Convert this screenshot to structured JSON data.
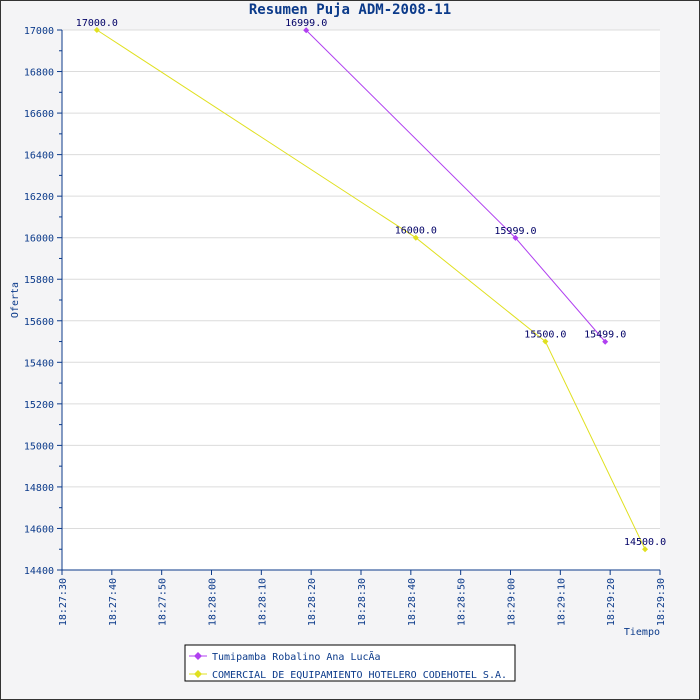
{
  "chart_data": {
    "type": "line",
    "title": "Resumen Puja ADM-2008-11",
    "xlabel": "Tiempo",
    "ylabel": "Oferta",
    "ylim": [
      14400,
      17000
    ],
    "yticks": [
      14400,
      14600,
      14800,
      15000,
      15200,
      15400,
      15600,
      15800,
      16000,
      16200,
      16400,
      16600,
      16800,
      17000
    ],
    "xlim_seconds": [
      0,
      120
    ],
    "xticks": [
      "18:27:30",
      "18:27:40",
      "18:27:50",
      "18:28:00",
      "18:28:10",
      "18:28:20",
      "18:28:30",
      "18:28:40",
      "18:28:50",
      "18:29:00",
      "18:29:10",
      "18:29:20",
      "18:29:30"
    ],
    "grid": true,
    "legend_position": "bottom-center",
    "series": [
      {
        "name": "Tumipamba Robalino Ana LucÃ­a",
        "color": "#b040f0",
        "x_seconds": [
          49,
          91,
          109
        ],
        "values": [
          16999.0,
          15999.0,
          15499.0
        ],
        "labels": [
          "16999.0",
          "15999.0",
          "15499.0"
        ]
      },
      {
        "name": "COMERCIAL DE EQUIPAMIENTO HOTELERO CODEHOTEL S.A.",
        "color": "#e0e020",
        "x_seconds": [
          7,
          71,
          97,
          117
        ],
        "values": [
          17000.0,
          16000.0,
          15500.0,
          14500.0
        ],
        "labels": [
          "17000.0",
          "16000.0",
          "15500.0",
          "14500.0"
        ]
      }
    ]
  }
}
